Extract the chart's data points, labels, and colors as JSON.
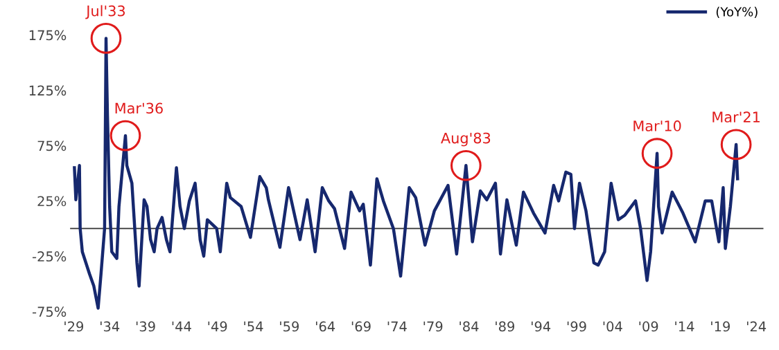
{
  "chart_data": {
    "type": "line",
    "series": [
      {
        "name": "(YoY%)",
        "color": "#16286e",
        "x": [
          1929.1,
          1929.3,
          1929.8,
          1929.9,
          1930.2,
          1931.2,
          1931.8,
          1932.4,
          1932.8,
          1933.3,
          1933.5,
          1933.7,
          1934.0,
          1934.3,
          1935.0,
          1935.3,
          1936.2,
          1936.4,
          1937.1,
          1937.8,
          1938.1,
          1938.8,
          1939.2,
          1939.7,
          1940.2,
          1940.6,
          1941.3,
          1941.9,
          1942.4,
          1943.3,
          1943.8,
          1944.4,
          1945.1,
          1945.9,
          1946.6,
          1947.1,
          1947.6,
          1948.9,
          1949.4,
          1950.3,
          1950.8,
          1952.3,
          1953.6,
          1954.9,
          1955.8,
          1956.1,
          1957.7,
          1958.9,
          1960.5,
          1961.5,
          1962.6,
          1963.6,
          1964.5,
          1965.3,
          1966.7,
          1967.6,
          1968.8,
          1969.3,
          1970.3,
          1971.2,
          1972.1,
          1973.5,
          1974.5,
          1975.7,
          1976.6,
          1977.9,
          1979.2,
          1981.1,
          1982.3,
          1983.6,
          1984.5,
          1985.6,
          1986.5,
          1987.7,
          1988.4,
          1989.3,
          1990.6,
          1991.6,
          1993.0,
          1994.6,
          1995.8,
          1996.5,
          1997.5,
          1998.2,
          1998.7,
          1999.4,
          2000.3,
          2001.4,
          2002.0,
          2002.9,
          2003.8,
          2004.8,
          2005.7,
          2007.2,
          2007.9,
          2008.8,
          2009.3,
          2010.2,
          2010.4,
          2010.9,
          2012.3,
          2013.8,
          2015.5,
          2016.9,
          2017.8,
          2018.8,
          2019.4,
          2019.7,
          2020.4,
          2021.2,
          2021.4
        ],
        "values": [
          55,
          26,
          57,
          0,
          -21,
          -41,
          -52,
          -72,
          -41,
          0,
          172,
          102,
          20,
          -21,
          -27,
          20,
          84,
          57,
          41,
          -31,
          -52,
          26,
          20,
          -10,
          -21,
          0,
          10,
          -10,
          -21,
          55,
          20,
          0,
          25,
          41,
          -10,
          -25,
          8,
          0,
          -21,
          41,
          28,
          20,
          -8,
          47,
          37,
          26,
          -17,
          37,
          -10,
          26,
          -21,
          37,
          25,
          18,
          -18,
          33,
          16,
          22,
          -33,
          45,
          25,
          0,
          -43,
          37,
          28,
          -15,
          16,
          39,
          -23,
          57,
          -12,
          34,
          26,
          41,
          -23,
          26,
          -15,
          33,
          14,
          -4,
          39,
          25,
          51,
          49,
          0,
          41,
          16,
          -31,
          -33,
          -21,
          41,
          8,
          12,
          25,
          0,
          -47,
          -21,
          68,
          20,
          -4,
          33,
          14,
          -12,
          25,
          25,
          -12,
          37,
          -18,
          20,
          76,
          45
        ]
      }
    ],
    "xlim": [
      1928.5,
      2025
    ],
    "xticks": [
      {
        "value": 1929,
        "label": "'29"
      },
      {
        "value": 1934,
        "label": "'34"
      },
      {
        "value": 1939,
        "label": "'39"
      },
      {
        "value": 1944,
        "label": "'44"
      },
      {
        "value": 1949,
        "label": "'49"
      },
      {
        "value": 1954,
        "label": "'54"
      },
      {
        "value": 1959,
        "label": "'59"
      },
      {
        "value": 1964,
        "label": "'64"
      },
      {
        "value": 1969,
        "label": "'69"
      },
      {
        "value": 1974,
        "label": "'74"
      },
      {
        "value": 1979,
        "label": "'79"
      },
      {
        "value": 1984,
        "label": "'84"
      },
      {
        "value": 1989,
        "label": "'89"
      },
      {
        "value": 1994,
        "label": "'94"
      },
      {
        "value": 1999,
        "label": "'99"
      },
      {
        "value": 2004,
        "label": "'04"
      },
      {
        "value": 2009,
        "label": "'09"
      },
      {
        "value": 2014,
        "label": "'14"
      },
      {
        "value": 2019,
        "label": "'19"
      },
      {
        "value": 2024,
        "label": "'24"
      }
    ],
    "ylim": [
      -75,
      175
    ],
    "yticks": [
      {
        "value": -75,
        "label": "-75%"
      },
      {
        "value": -25,
        "label": "-25%"
      },
      {
        "value": 25,
        "label": "25%"
      },
      {
        "value": 75,
        "label": "75%"
      },
      {
        "value": 125,
        "label": "125%"
      },
      {
        "value": 175,
        "label": "175%"
      }
    ],
    "ref_lines": [
      {
        "axis": "y",
        "value": 0,
        "color": "#333333"
      }
    ],
    "annotations": [
      {
        "text": "Jul'33",
        "x": 1933.5,
        "y": 172
      },
      {
        "text": "Mar'36",
        "x": 1936.2,
        "y": 84
      },
      {
        "text": "Aug'83",
        "x": 1983.6,
        "y": 57
      },
      {
        "text": "Mar'10",
        "x": 2010.2,
        "y": 68
      },
      {
        "text": "Mar'21",
        "x": 2021.2,
        "y": 76
      }
    ],
    "grid": false,
    "legend": "top right"
  }
}
